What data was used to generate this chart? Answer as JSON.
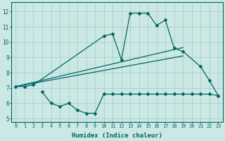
{
  "xlabel": "Humidex (Indice chaleur)",
  "background_color": "#cce8e4",
  "grid_color": "#aad4d0",
  "line_color": "#006666",
  "xlim": [
    -0.5,
    23.5
  ],
  "ylim": [
    4.8,
    12.6
  ],
  "yticks": [
    5,
    6,
    7,
    8,
    9,
    10,
    11,
    12
  ],
  "xticks": [
    0,
    1,
    2,
    3,
    4,
    5,
    6,
    7,
    8,
    9,
    10,
    11,
    12,
    13,
    14,
    15,
    16,
    17,
    18,
    19,
    20,
    21,
    22,
    23
  ],
  "series_main": {
    "x": [
      0,
      1,
      2,
      10,
      11,
      12,
      13,
      14,
      15,
      16,
      17,
      18,
      19,
      21,
      22,
      23
    ],
    "y": [
      7.1,
      7.1,
      7.2,
      10.4,
      10.55,
      8.85,
      11.9,
      11.9,
      11.9,
      11.1,
      11.45,
      9.6,
      9.4,
      8.4,
      7.5,
      6.5
    ]
  },
  "series_low": {
    "x": [
      3,
      4,
      5,
      6,
      7,
      8,
      9,
      10,
      11,
      12,
      13,
      14,
      15,
      16,
      17,
      18,
      19,
      20,
      21,
      22,
      23
    ],
    "y": [
      6.75,
      6.0,
      5.8,
      6.0,
      5.55,
      5.35,
      5.35,
      6.6,
      6.6,
      6.6,
      6.6,
      6.6,
      6.6,
      6.6,
      6.6,
      6.6,
      6.6,
      6.6,
      6.6,
      6.6,
      6.5
    ]
  },
  "regression_upper": {
    "x": [
      0,
      19
    ],
    "y": [
      7.1,
      9.65
    ]
  },
  "regression_lower": {
    "x": [
      0,
      19
    ],
    "y": [
      7.1,
      9.1
    ]
  }
}
